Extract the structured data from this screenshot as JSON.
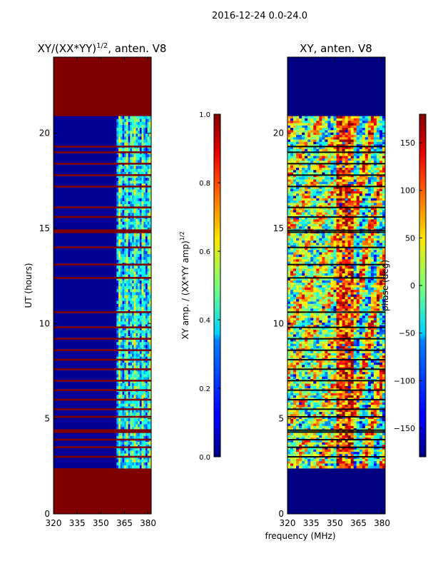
{
  "figure_title": "2016-12-24 0.0-24.0",
  "shared_xlabel": "frequency (MHz)",
  "chart_data": [
    {
      "type": "heatmap",
      "title": "XY/(XX*YY)",
      "title_superscript": "1/2",
      "title_suffix": ", anten. V8",
      "ylabel": "UT (hours)",
      "xlim": [
        320,
        382
      ],
      "ylim": [
        0,
        24
      ],
      "x_ticks": [
        320,
        335,
        350,
        365,
        380
      ],
      "y_ticks": [
        0,
        5,
        10,
        15,
        20
      ],
      "observed_ut_range": [
        2.4,
        20.9
      ],
      "active_band_mhz": [
        360,
        382
      ],
      "background_value": 0.02,
      "band_value_range": [
        0.2,
        0.6
      ],
      "flagged_fill_value": 1.0,
      "flagged_ut_rows": [
        3.0,
        3.5,
        3.9,
        4.3,
        4.4,
        5.1,
        5.5,
        6.0,
        6.5,
        7.0,
        7.6,
        8.1,
        8.6,
        9.2,
        9.8,
        10.6,
        12.4,
        13.1,
        14.0,
        14.8,
        14.9,
        15.6,
        16.1,
        17.2,
        17.8,
        18.4,
        19.0,
        19.3
      ],
      "colorbar": {
        "label": "XY amp. / (XX*YY amp)",
        "label_superscript": "1/2",
        "range": [
          0.0,
          1.0
        ],
        "ticks": [
          "0.0",
          "0.2",
          "0.4",
          "0.6",
          "0.8",
          "1.0"
        ],
        "colormap": "jet"
      }
    },
    {
      "type": "heatmap",
      "title": "XY, anten. V8",
      "xlim": [
        320,
        382
      ],
      "ylim": [
        0,
        24
      ],
      "x_ticks": [
        320,
        335,
        350,
        365,
        380
      ],
      "y_ticks": [
        0,
        5,
        10,
        15,
        20
      ],
      "observed_ut_range": [
        2.4,
        20.9
      ],
      "fill_value_outside": -180,
      "value_range": [
        -180,
        180
      ],
      "flagged_ut_rows": [
        3.0,
        3.5,
        3.9,
        4.3,
        4.4,
        5.1,
        5.5,
        6.0,
        6.5,
        7.0,
        7.6,
        8.1,
        8.6,
        9.2,
        9.8,
        10.6,
        12.4,
        13.1,
        14.0,
        14.8,
        14.9,
        15.6,
        16.1,
        17.2,
        17.8,
        18.4,
        19.0,
        19.3
      ],
      "colorbar": {
        "label": "phase (deg)",
        "range": [
          -180,
          180
        ],
        "ticks": [
          "−150",
          "−100",
          "−50",
          "0",
          "50",
          "100",
          "150"
        ],
        "tick_values": [
          -150,
          -100,
          -50,
          0,
          50,
          100,
          150
        ],
        "colormap": "jet"
      }
    }
  ]
}
